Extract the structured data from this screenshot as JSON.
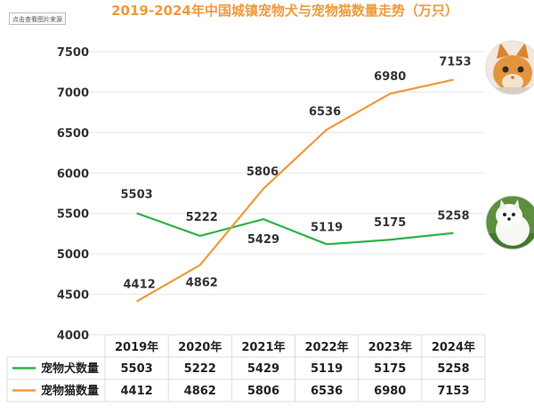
{
  "source_button": "点击查看图片来源",
  "chart_data": {
    "type": "line",
    "title": "2019-2024年中国城镇宠物犬与宠物猫数量走势（万只）",
    "categories": [
      "2019年",
      "2020年",
      "2021年",
      "2022年",
      "2023年",
      "2024年"
    ],
    "ylim": [
      4000,
      7500
    ],
    "yticks": [
      4000,
      4500,
      5000,
      5500,
      6000,
      6500,
      7000,
      7500
    ],
    "grid": true,
    "series": [
      {
        "name": "宠物犬数量",
        "color": "#2eb34a",
        "values": [
          5503,
          5222,
          5429,
          5119,
          5175,
          5258
        ]
      },
      {
        "name": "宠物猫数量",
        "color": "#ef9a3a",
        "values": [
          4412,
          4862,
          5806,
          6536,
          6980,
          7153
        ]
      }
    ],
    "images": [
      "cat-photo",
      "dog-photo"
    ]
  }
}
